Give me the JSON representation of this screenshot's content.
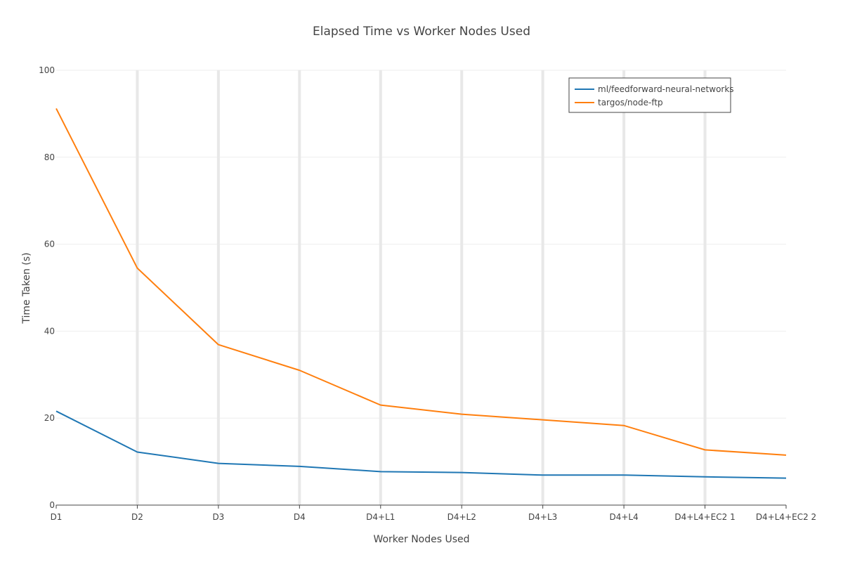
{
  "chart_data": {
    "type": "line",
    "title": "Elapsed Time vs  Worker Nodes Used",
    "xlabel": "Worker Nodes Used",
    "ylabel": "Time Taken (s)",
    "ylim": [
      0,
      100
    ],
    "yticks": [
      0,
      20,
      40,
      60,
      80,
      100
    ],
    "grid": true,
    "legend_position": "top-right",
    "categories": [
      "D1",
      "D2",
      "D3",
      "D4",
      "D4+L1",
      "D4+L2",
      "D4+L3",
      "D4+L4",
      "D4+L4+EC2 1",
      "D4+L4+EC2 2"
    ],
    "series": [
      {
        "name": "ml/feedforward-neural-networks",
        "color": "#1f77b4",
        "values": [
          21.6,
          12.2,
          9.6,
          8.9,
          7.7,
          7.5,
          6.9,
          6.9,
          6.5,
          6.2
        ]
      },
      {
        "name": "targos/node-ftp",
        "color": "#ff7f0e",
        "values": [
          91.2,
          54.5,
          36.9,
          31.0,
          23.0,
          20.9,
          19.6,
          18.3,
          12.7,
          11.5
        ]
      }
    ]
  }
}
